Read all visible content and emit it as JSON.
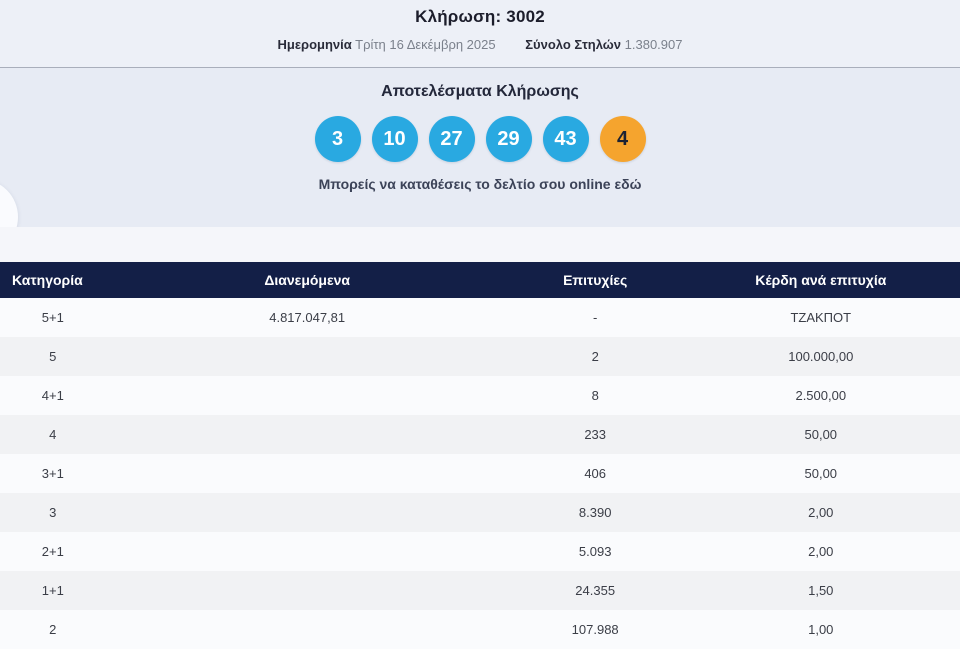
{
  "draw": {
    "title": "Κλήρωση: 3002",
    "date_label": "Ημερομηνία",
    "date_value": "Τρίτη 16 Δεκέμβρη 2025",
    "columns_label": "Σύνολο Στηλών",
    "columns_value": "1.380.907"
  },
  "results": {
    "heading": "Αποτελέσματα Κλήρωσης",
    "numbers": [
      "3",
      "10",
      "27",
      "29",
      "43"
    ],
    "joker": "4",
    "link_text": "Μπορείς να καταθέσεις το δελτίο σου online εδώ"
  },
  "table": {
    "headers": [
      "Κατηγορία",
      "Διανεμόμενα",
      "Επιτυχίες",
      "Κέρδη ανά επιτυχία"
    ],
    "rows": [
      {
        "category": "5+1",
        "distributed": "4.817.047,81",
        "winners": "-",
        "prize": "ΤΖΑΚΠΟΤ"
      },
      {
        "category": "5",
        "distributed": "",
        "winners": "2",
        "prize": "100.000,00"
      },
      {
        "category": "4+1",
        "distributed": "",
        "winners": "8",
        "prize": "2.500,00"
      },
      {
        "category": "4",
        "distributed": "",
        "winners": "233",
        "prize": "50,00"
      },
      {
        "category": "3+1",
        "distributed": "",
        "winners": "406",
        "prize": "50,00"
      },
      {
        "category": "3",
        "distributed": "",
        "winners": "8.390",
        "prize": "2,00"
      },
      {
        "category": "2+1",
        "distributed": "",
        "winners": "5.093",
        "prize": "2,00"
      },
      {
        "category": "1+1",
        "distributed": "",
        "winners": "24.355",
        "prize": "1,50"
      },
      {
        "category": "2",
        "distributed": "",
        "winners": "107.988",
        "prize": "1,00"
      }
    ]
  },
  "colors": {
    "ball_blue": "#29a9e1",
    "ball_orange": "#f5a42e",
    "header_navy": "#131f47"
  }
}
